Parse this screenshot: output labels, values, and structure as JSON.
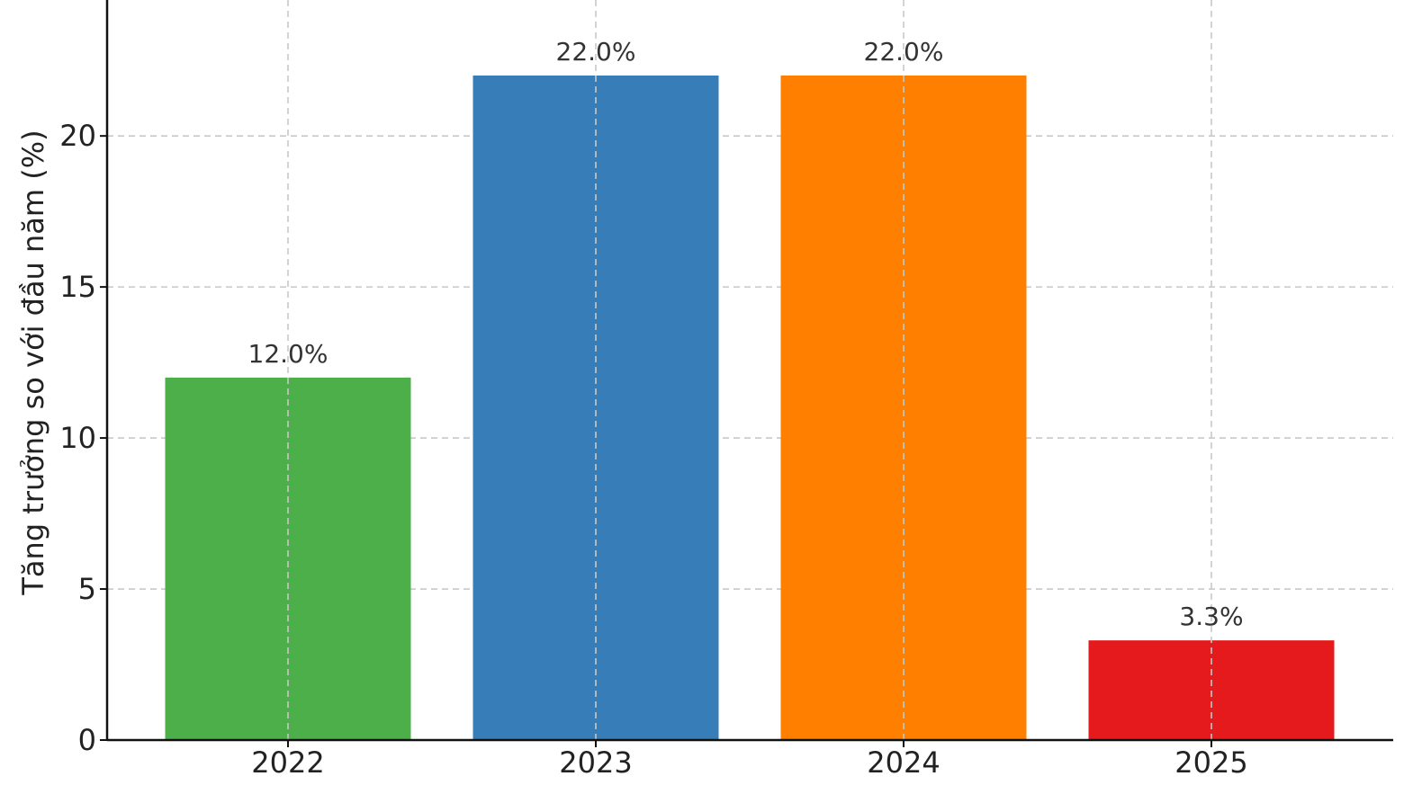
{
  "chart_data": {
    "type": "bar",
    "title": "",
    "xlabel": "",
    "ylabel": "Tăng trưởng so với đầu năm (%)",
    "categories": [
      "2022",
      "2023",
      "2024",
      "2025"
    ],
    "values": [
      12.0,
      22.0,
      22.0,
      3.3
    ],
    "value_labels": [
      "12.0%",
      "22.0%",
      "22.0%",
      "3.3%"
    ],
    "colors": [
      "#4daf4a",
      "#377eb8",
      "#ff7f00",
      "#e41a1c"
    ],
    "ylim": [
      0,
      24.5
    ],
    "yticks": [
      0,
      5,
      10,
      15,
      20
    ],
    "ytick_labels": [
      "0",
      "5",
      "10",
      "15",
      "20"
    ],
    "grid": true,
    "legend": null
  }
}
